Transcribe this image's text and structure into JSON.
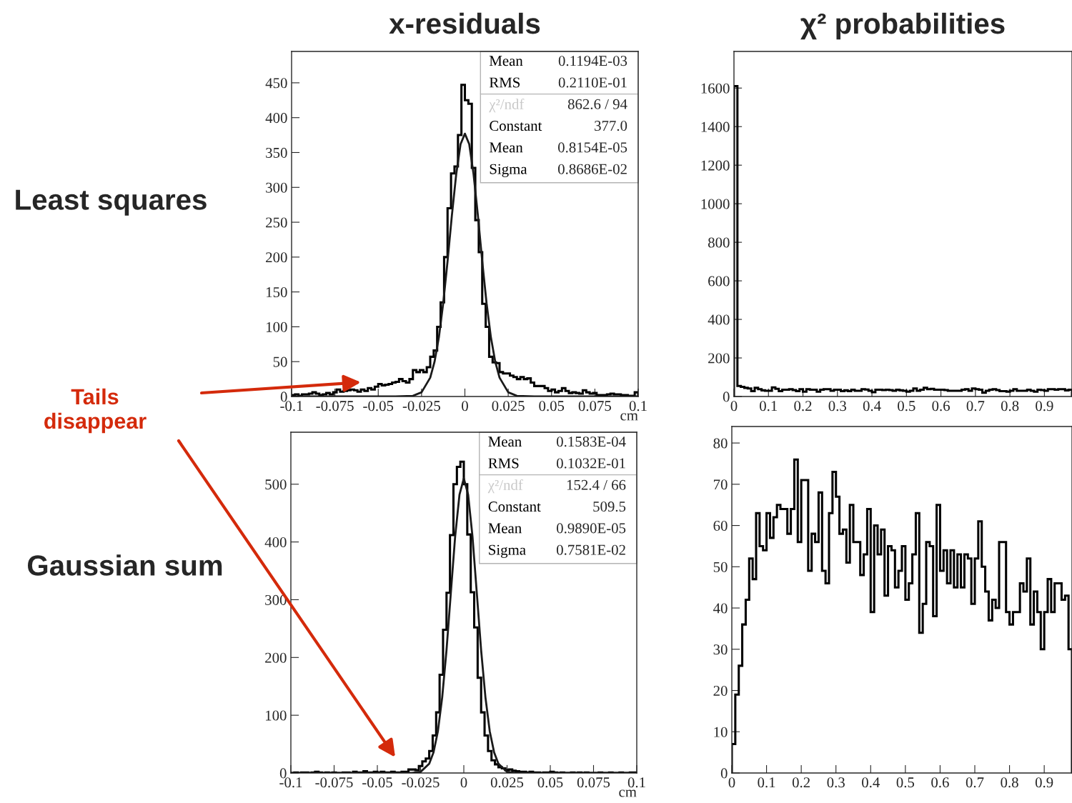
{
  "chart_data": [
    {
      "type": "histogram",
      "title": "x-residuals",
      "ylabel": "Least squares",
      "xlabel": "cm",
      "bins": [
        -0.1,
        -0.098,
        -0.096,
        -0.094,
        -0.092,
        -0.09,
        -0.088,
        -0.086,
        -0.084,
        -0.082,
        -0.08,
        -0.078,
        -0.076,
        -0.074,
        -0.072,
        -0.07,
        -0.068,
        -0.066,
        -0.064,
        -0.062,
        -0.06,
        -0.058,
        -0.056,
        -0.054,
        -0.052,
        -0.05,
        -0.048,
        -0.046,
        -0.044,
        -0.042,
        -0.04,
        -0.038,
        -0.036,
        -0.034,
        -0.032,
        -0.03,
        -0.028,
        -0.026,
        -0.024,
        -0.022,
        -0.02,
        -0.018,
        -0.016,
        -0.014,
        -0.012,
        -0.01,
        -0.008,
        -0.006,
        -0.004,
        -0.002,
        0,
        0.002,
        0.004,
        0.006,
        0.008,
        0.01,
        0.012,
        0.014,
        0.016,
        0.018,
        0.02,
        0.022,
        0.024,
        0.026,
        0.028,
        0.03,
        0.032,
        0.034,
        0.036,
        0.038,
        0.04,
        0.042,
        0.044,
        0.046,
        0.048,
        0.05,
        0.052,
        0.054,
        0.056,
        0.058,
        0.06,
        0.062,
        0.064,
        0.066,
        0.068,
        0.07,
        0.072,
        0.074,
        0.076,
        0.078,
        0.08,
        0.082,
        0.084,
        0.086,
        0.088,
        0.09,
        0.092,
        0.094,
        0.096,
        0.098,
        0.1
      ],
      "series": [
        {
          "type": "histogram",
          "color": "#000000",
          "values": [
            2,
            3,
            1,
            3,
            3,
            4,
            6,
            4,
            2,
            3,
            5,
            3,
            6,
            10,
            7,
            8,
            9,
            10,
            9,
            7,
            10,
            8,
            12,
            10,
            14,
            18,
            16,
            17,
            18,
            20,
            21,
            25,
            22,
            20,
            25,
            38,
            35,
            38,
            35,
            42,
            57,
            66,
            100,
            135,
            200,
            270,
            320,
            330,
            375,
            447,
            425,
            420,
            328,
            253,
            207,
            133,
            100,
            57,
            49,
            48,
            35,
            33,
            33,
            30,
            28,
            25,
            28,
            25,
            26,
            20,
            15,
            15,
            15,
            12,
            8,
            10,
            6,
            8,
            12,
            8,
            5,
            6,
            5,
            4,
            9,
            6,
            4,
            5,
            2,
            2,
            2,
            3,
            4,
            3,
            3,
            2,
            2,
            1,
            1,
            6
          ]
        },
        {
          "type": "line",
          "color": "#1a1a1a",
          "x": [
            -0.1,
            -0.04,
            -0.03,
            -0.025,
            -0.02,
            -0.0175,
            -0.015,
            -0.0125,
            -0.01,
            -0.0075,
            -0.005,
            -0.0025,
            0,
            0.0025,
            0.005,
            0.0075,
            0.01,
            0.0125,
            0.015,
            0.0175,
            0.02,
            0.025,
            0.03,
            0.04,
            0.1
          ],
          "values": [
            0,
            0,
            1,
            6,
            27,
            50,
            85,
            134,
            194,
            260,
            319,
            362,
            377,
            362,
            319,
            260,
            194,
            134,
            85,
            50,
            27,
            6,
            1,
            0,
            0
          ]
        }
      ],
      "xlim": [
        -0.1,
        0.1
      ],
      "ylim": [
        0,
        495
      ],
      "xticks": [
        -0.1,
        -0.075,
        -0.05,
        -0.025,
        0,
        0.025,
        0.05,
        0.075,
        0.1
      ],
      "yticks": [
        0,
        50,
        100,
        150,
        200,
        250,
        300,
        350,
        400,
        450
      ],
      "annotations": [
        "Mean",
        "0.1194E-03",
        "RMS",
        "0.2110E-01",
        "χ²/ndf",
        "862.6 / 94",
        "Constant",
        "377.0",
        "Mean",
        "0.8154E-05",
        "Sigma",
        "0.8686E-02",
        "Tails\ndisappear"
      ]
    },
    {
      "type": "histogram",
      "title": "χ² probabilities",
      "bins": [
        0,
        0.01,
        0.02,
        0.03,
        0.04,
        0.05,
        0.06,
        0.07,
        0.08,
        0.09,
        0.1,
        0.11,
        0.12,
        0.13,
        0.14,
        0.15,
        0.16,
        0.17,
        0.18,
        0.19,
        0.2,
        0.21,
        0.22,
        0.23,
        0.24,
        0.25,
        0.26,
        0.27,
        0.28,
        0.29,
        0.3,
        0.31,
        0.32,
        0.33,
        0.34,
        0.35,
        0.36,
        0.37,
        0.38,
        0.39,
        0.4,
        0.41,
        0.42,
        0.43,
        0.44,
        0.45,
        0.46,
        0.47,
        0.48,
        0.49,
        0.5,
        0.51,
        0.52,
        0.53,
        0.54,
        0.55,
        0.56,
        0.57,
        0.58,
        0.59,
        0.6,
        0.61,
        0.62,
        0.63,
        0.64,
        0.65,
        0.66,
        0.67,
        0.68,
        0.69,
        0.7,
        0.71,
        0.72,
        0.73,
        0.74,
        0.75,
        0.76,
        0.77,
        0.78,
        0.79,
        0.8,
        0.81,
        0.82,
        0.83,
        0.84,
        0.85,
        0.86,
        0.87,
        0.88,
        0.89,
        0.9,
        0.91,
        0.92,
        0.93,
        0.94,
        0.95,
        0.96,
        0.97,
        0.98
      ],
      "series": [
        {
          "type": "histogram",
          "color": "#000000",
          "values": [
            1610,
            55,
            50,
            45,
            42,
            28,
            45,
            38,
            32,
            30,
            30,
            47,
            40,
            28,
            35,
            35,
            38,
            33,
            28,
            38,
            25,
            38,
            35,
            35,
            25,
            35,
            38,
            38,
            30,
            35,
            35,
            28,
            32,
            28,
            35,
            30,
            30,
            38,
            36,
            30,
            22,
            35,
            35,
            33,
            35,
            33,
            30,
            35,
            32,
            30,
            25,
            30,
            42,
            30,
            35,
            45,
            38,
            40,
            35,
            35,
            35,
            33,
            30,
            30,
            30,
            30,
            35,
            38,
            30,
            42,
            38,
            35,
            20,
            30,
            35,
            38,
            33,
            28,
            28,
            25,
            30,
            38,
            30,
            30,
            30,
            35,
            30,
            25,
            35,
            33,
            30,
            38,
            38,
            35,
            38,
            38,
            32,
            35
          ]
        }
      ],
      "xlim": [
        0,
        0.98
      ],
      "ylim": [
        0,
        1790
      ],
      "xticks": [
        0,
        0.1,
        0.2,
        0.3,
        0.4,
        0.5,
        0.6,
        0.7,
        0.8,
        0.9
      ],
      "yticks": [
        0,
        200,
        400,
        600,
        800,
        1000,
        1200,
        1400,
        1600
      ]
    },
    {
      "type": "histogram",
      "ylabel": "Gaussian sum",
      "xlabel": "cm",
      "bins": [
        -0.1,
        -0.098,
        -0.096,
        -0.094,
        -0.092,
        -0.09,
        -0.088,
        -0.086,
        -0.084,
        -0.082,
        -0.08,
        -0.078,
        -0.076,
        -0.074,
        -0.072,
        -0.07,
        -0.068,
        -0.066,
        -0.064,
        -0.062,
        -0.06,
        -0.058,
        -0.056,
        -0.054,
        -0.052,
        -0.05,
        -0.048,
        -0.046,
        -0.044,
        -0.042,
        -0.04,
        -0.038,
        -0.036,
        -0.034,
        -0.032,
        -0.03,
        -0.028,
        -0.026,
        -0.024,
        -0.022,
        -0.02,
        -0.018,
        -0.016,
        -0.014,
        -0.012,
        -0.01,
        -0.008,
        -0.006,
        -0.004,
        -0.002,
        0,
        0.002,
        0.004,
        0.006,
        0.008,
        0.01,
        0.012,
        0.014,
        0.016,
        0.018,
        0.02,
        0.022,
        0.024,
        0.026,
        0.028,
        0.03,
        0.032,
        0.034,
        0.036,
        0.038,
        0.04,
        0.042,
        0.044,
        0.046,
        0.048,
        0.05,
        0.052,
        0.054,
        0.056,
        0.058,
        0.06,
        0.062,
        0.064,
        0.066,
        0.068,
        0.07,
        0.072,
        0.074,
        0.076,
        0.078,
        0.08,
        0.082,
        0.084,
        0.086,
        0.088,
        0.09,
        0.092,
        0.094,
        0.096,
        0.098,
        0.1
      ],
      "series": [
        {
          "type": "histogram",
          "color": "#000000",
          "values": [
            0,
            1,
            0,
            1,
            1,
            0,
            1,
            2,
            1,
            0,
            1,
            0,
            1,
            0,
            0,
            1,
            1,
            0,
            2,
            1,
            1,
            3,
            1,
            1,
            2,
            1,
            2,
            1,
            1,
            2,
            1,
            1,
            2,
            2,
            6,
            6,
            5,
            12,
            20,
            25,
            38,
            65,
            105,
            170,
            248,
            312,
            412,
            500,
            530,
            539,
            500,
            413,
            313,
            252,
            165,
            105,
            65,
            38,
            22,
            15,
            10,
            8,
            5,
            6,
            4,
            3,
            2,
            2,
            1,
            2,
            1,
            1,
            0,
            1,
            1,
            2,
            1,
            0,
            1,
            0,
            0,
            1,
            0,
            1,
            0,
            1,
            0,
            0,
            0,
            1,
            0,
            0,
            1,
            0,
            0,
            1,
            0,
            0,
            1,
            1
          ]
        },
        {
          "type": "line",
          "color": "#1a1a1a",
          "x": [
            -0.1,
            -0.04,
            -0.03,
            -0.025,
            -0.02,
            -0.0175,
            -0.015,
            -0.0125,
            -0.01,
            -0.0075,
            -0.005,
            -0.0025,
            0,
            0.0025,
            0.005,
            0.0075,
            0.01,
            0.0125,
            0.015,
            0.0175,
            0.02,
            0.025,
            0.03,
            0.04,
            0.1
          ],
          "values": [
            0,
            0,
            0,
            2,
            16,
            36,
            72,
            131,
            213,
            312,
            410,
            482,
            510,
            482,
            410,
            312,
            213,
            131,
            72,
            36,
            16,
            2,
            0,
            0,
            0
          ]
        }
      ],
      "xlim": [
        -0.1,
        0.1
      ],
      "ylim": [
        0,
        590
      ],
      "xticks": [
        -0.1,
        -0.075,
        -0.05,
        -0.025,
        0,
        0.025,
        0.05,
        0.075,
        0.1
      ],
      "yticks": [
        0,
        100,
        200,
        300,
        400,
        500
      ],
      "annotations": [
        "Mean",
        "0.1583E-04",
        "RMS",
        "0.1032E-01",
        "χ²/ndf",
        "152.4 / 66",
        "Constant",
        "509.5",
        "Mean",
        "0.9890E-05",
        "Sigma",
        "0.7581E-02"
      ]
    },
    {
      "type": "histogram",
      "bins": [
        0,
        0.01,
        0.02,
        0.03,
        0.04,
        0.05,
        0.06,
        0.07,
        0.08,
        0.09,
        0.1,
        0.11,
        0.12,
        0.13,
        0.14,
        0.15,
        0.16,
        0.17,
        0.18,
        0.19,
        0.2,
        0.21,
        0.22,
        0.23,
        0.24,
        0.25,
        0.26,
        0.27,
        0.28,
        0.29,
        0.3,
        0.31,
        0.32,
        0.33,
        0.34,
        0.35,
        0.36,
        0.37,
        0.38,
        0.39,
        0.4,
        0.41,
        0.42,
        0.43,
        0.44,
        0.45,
        0.46,
        0.47,
        0.48,
        0.49,
        0.5,
        0.51,
        0.52,
        0.53,
        0.54,
        0.55,
        0.56,
        0.57,
        0.58,
        0.59,
        0.6,
        0.61,
        0.62,
        0.63,
        0.64,
        0.65,
        0.66,
        0.67,
        0.68,
        0.69,
        0.7,
        0.71,
        0.72,
        0.73,
        0.74,
        0.75,
        0.76,
        0.77,
        0.78,
        0.79,
        0.8,
        0.81,
        0.82,
        0.83,
        0.84,
        0.85,
        0.86,
        0.87,
        0.88,
        0.89,
        0.9,
        0.91,
        0.92,
        0.93,
        0.94,
        0.95,
        0.96,
        0.97,
        0.98
      ],
      "series": [
        {
          "type": "histogram",
          "color": "#000000",
          "values": [
            7,
            19,
            26,
            36,
            42,
            52,
            47,
            63,
            55,
            54,
            63,
            57,
            62,
            65,
            64,
            64,
            58,
            64,
            76,
            56,
            71,
            71,
            49,
            58,
            56,
            68,
            49,
            46,
            63,
            73,
            67,
            58,
            59,
            51,
            65,
            56,
            56,
            48,
            53,
            64,
            39,
            60,
            53,
            59,
            43,
            55,
            54,
            45,
            49,
            55,
            42,
            46,
            53,
            63,
            34,
            41,
            56,
            55,
            38,
            65,
            49,
            54,
            46,
            54,
            45,
            53,
            45,
            53,
            52,
            41,
            52,
            61,
            50,
            44,
            37,
            42,
            40,
            56,
            56,
            39,
            36,
            39,
            39,
            46,
            44,
            52,
            36,
            44,
            39,
            30,
            39,
            47,
            39,
            46,
            46,
            42,
            43,
            30
          ]
        }
      ],
      "xlim": [
        0,
        0.98
      ],
      "ylim": [
        0,
        84
      ],
      "xticks": [
        0,
        0.1,
        0.2,
        0.3,
        0.4,
        0.5,
        0.6,
        0.7,
        0.8,
        0.9
      ],
      "yticks": [
        0,
        10,
        20,
        30,
        40,
        50,
        60,
        70,
        80
      ]
    }
  ]
}
